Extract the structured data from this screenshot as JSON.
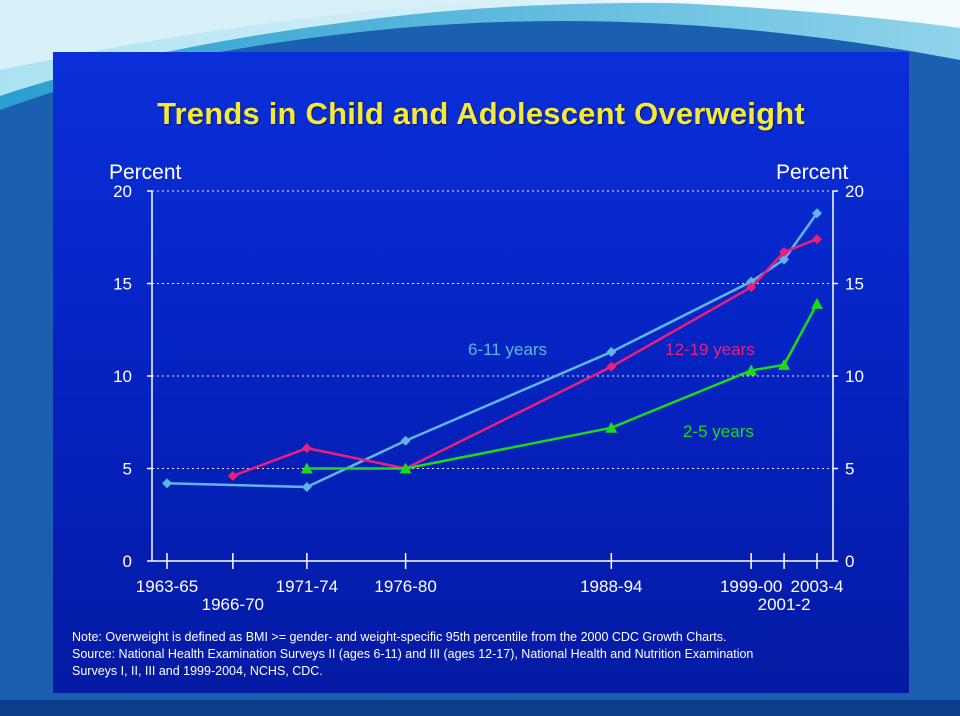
{
  "slide": {
    "title": "Trends in Child and Adolescent Overweight",
    "note": "Note: Overweight is defined as BMI >= gender- and weight-specific 95th percentile from the 2000 CDC Growth Charts.",
    "source_line1": "Source: National Health Examination Surveys II (ages 6-11) and III (ages 12-17), National Health and Nutrition Examination",
    "source_line2": "Surveys I, II, III and 1999-2004, NCHS, CDC."
  },
  "colors": {
    "background": "#0624c4",
    "title": "#f5e93a",
    "text": "#ffffff",
    "series_6_11": "#5fb6e6",
    "series_12_19": "#ea1f7a",
    "series_2_5": "#1ed81e"
  },
  "chart_data": {
    "type": "line",
    "title": "Trends in Child and Adolescent Overweight",
    "ylabel": "Percent",
    "ylabel_right": "Percent",
    "ylim": [
      0,
      20
    ],
    "yticks": [
      0,
      5,
      10,
      15,
      20
    ],
    "grid": "horizontal dotted",
    "x_ticks": [
      {
        "label": "1963-65",
        "x": 1964,
        "row": 1
      },
      {
        "label": "1966-70",
        "x": 1968,
        "row": 2
      },
      {
        "label": "1971-74",
        "x": 1972.5,
        "row": 1
      },
      {
        "label": "1976-80",
        "x": 1978.5,
        "row": 1
      },
      {
        "label": "1988-94",
        "x": 1991,
        "row": 1
      },
      {
        "label": "1999-00",
        "x": 1999.5,
        "row": 1
      },
      {
        "label": "2001-2",
        "x": 2001.5,
        "row": 2
      },
      {
        "label": "2003-4",
        "x": 2003.5,
        "row": 1
      }
    ],
    "xlim": [
      1963,
      2004.5
    ],
    "series": [
      {
        "name": "6-11 years",
        "color": "#5fb6e6",
        "marker": "diamond",
        "points": [
          [
            1964,
            4.2
          ],
          [
            1972.5,
            4.0
          ],
          [
            1978.5,
            6.5
          ],
          [
            1991,
            11.3
          ],
          [
            1999.5,
            15.1
          ],
          [
            2001.5,
            16.3
          ],
          [
            2003.5,
            18.8
          ]
        ]
      },
      {
        "name": "12-19 years",
        "color": "#ea1f7a",
        "marker": "diamond",
        "points": [
          [
            1968,
            4.6
          ],
          [
            1972.5,
            6.1
          ],
          [
            1978.5,
            5.0
          ],
          [
            1991,
            10.5
          ],
          [
            1999.5,
            14.8
          ],
          [
            2001.5,
            16.7
          ],
          [
            2003.5,
            17.4
          ]
        ]
      },
      {
        "name": "2-5 years",
        "color": "#1ed81e",
        "marker": "triangle",
        "points": [
          [
            1972.5,
            5.0
          ],
          [
            1978.5,
            5.0
          ],
          [
            1991,
            7.2
          ],
          [
            1999.5,
            10.3
          ],
          [
            2001.5,
            10.6
          ],
          [
            2003.5,
            13.9
          ]
        ]
      }
    ],
    "annotations": [
      {
        "text": "6-11 years",
        "series": "6-11 years"
      },
      {
        "text": "12-19 years",
        "series": "12-19 years"
      },
      {
        "text": "2-5 years",
        "series": "2-5 years"
      }
    ]
  }
}
